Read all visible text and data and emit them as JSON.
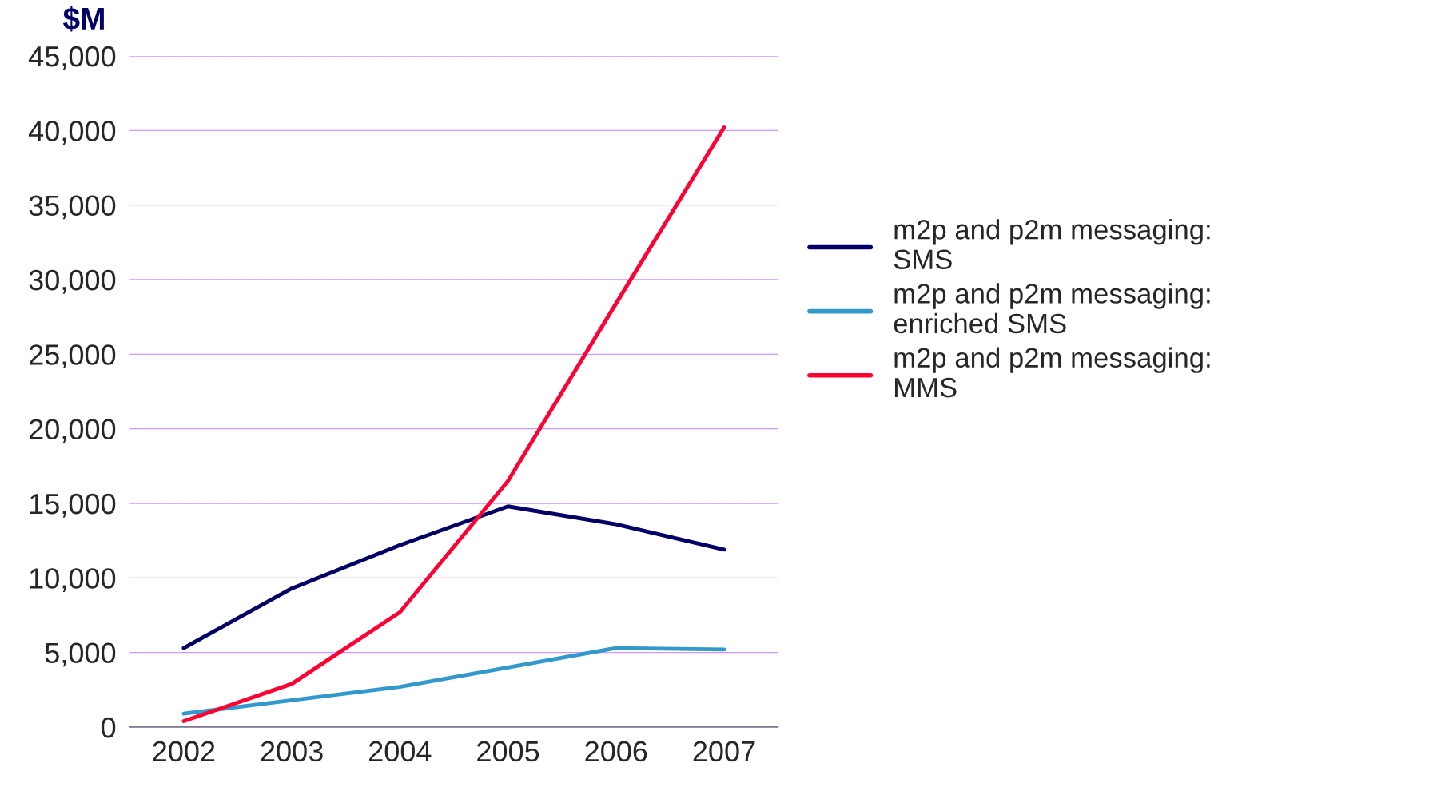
{
  "chart_data": {
    "type": "line",
    "ylabel": "$M",
    "categories": [
      "2002",
      "2003",
      "2004",
      "2005",
      "2006",
      "2007"
    ],
    "series": [
      {
        "name": "m2p and p2m messaging:\nSMS",
        "color": "#000066",
        "values": [
          5300,
          9300,
          12200,
          14800,
          13600,
          11900
        ]
      },
      {
        "name": "m2p and p2m messaging:\nenriched SMS",
        "color": "#3399cc",
        "values": [
          900,
          1800,
          2700,
          4000,
          5300,
          5200
        ]
      },
      {
        "name": "m2p and p2m messaging:\nMMS",
        "color": "#ff0033",
        "values": [
          400,
          2900,
          7700,
          16500,
          28400,
          40200
        ]
      }
    ],
    "ylim": [
      0,
      45000
    ],
    "yticks": [
      {
        "value": 0,
        "label": "0"
      },
      {
        "value": 5000,
        "label": "5,000"
      },
      {
        "value": 10000,
        "label": "10,000"
      },
      {
        "value": 15000,
        "label": "15,000"
      },
      {
        "value": 20000,
        "label": "20,000"
      },
      {
        "value": 25000,
        "label": "25,000"
      },
      {
        "value": 30000,
        "label": "30,000"
      },
      {
        "value": 35000,
        "label": "35,000"
      },
      {
        "value": 40000,
        "label": "40,000"
      },
      {
        "value": 45000,
        "label": "45,000"
      }
    ],
    "grid": "y",
    "legend": "right",
    "marker": "none",
    "line_style": "solid"
  }
}
